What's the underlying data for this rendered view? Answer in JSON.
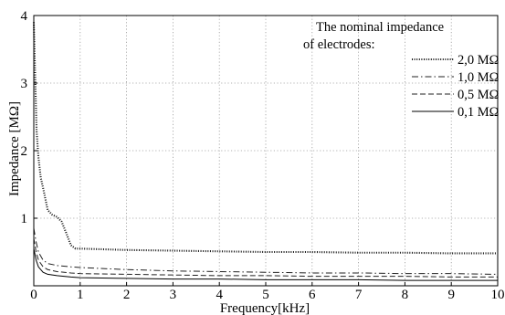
{
  "chart_data": {
    "type": "line",
    "xlabel": "Frequency[kHz]",
    "ylabel": "Impedance [MΩ]",
    "xlim": [
      0,
      10
    ],
    "ylim": [
      0,
      4
    ],
    "x_ticks": [
      "0",
      "1",
      "2",
      "3",
      "4",
      "5",
      "6",
      "7",
      "8",
      "9",
      "10"
    ],
    "y_ticks": [
      "1",
      "2",
      "3",
      "4"
    ],
    "grid": true,
    "legend": {
      "title_lines": [
        "The nominal impedance",
        "of electrodes:"
      ],
      "placement": "top-right"
    },
    "series": [
      {
        "name": "2,0 MΩ",
        "line_style": "dotted",
        "points": [
          [
            0.0,
            3.9
          ],
          [
            0.03,
            3.1
          ],
          [
            0.06,
            2.3
          ],
          [
            0.1,
            1.9
          ],
          [
            0.15,
            1.6
          ],
          [
            0.2,
            1.45
          ],
          [
            0.3,
            1.12
          ],
          [
            0.4,
            1.05
          ],
          [
            0.5,
            1.02
          ],
          [
            0.6,
            0.95
          ],
          [
            0.7,
            0.78
          ],
          [
            0.8,
            0.6
          ],
          [
            0.9,
            0.55
          ],
          [
            1.0,
            0.55
          ],
          [
            2.0,
            0.53
          ],
          [
            3.0,
            0.52
          ],
          [
            4.0,
            0.51
          ],
          [
            5.0,
            0.5
          ],
          [
            6.0,
            0.5
          ],
          [
            7.0,
            0.49
          ],
          [
            8.0,
            0.49
          ],
          [
            9.0,
            0.48
          ],
          [
            10.0,
            0.48
          ]
        ]
      },
      {
        "name": "1,0 MΩ",
        "line_style": "dash-dot",
        "points": [
          [
            0.0,
            0.85
          ],
          [
            0.05,
            0.65
          ],
          [
            0.1,
            0.5
          ],
          [
            0.2,
            0.38
          ],
          [
            0.3,
            0.33
          ],
          [
            0.5,
            0.3
          ],
          [
            0.8,
            0.28
          ],
          [
            1.0,
            0.27
          ],
          [
            2.0,
            0.24
          ],
          [
            3.0,
            0.22
          ],
          [
            4.0,
            0.21
          ],
          [
            5.0,
            0.2
          ],
          [
            6.0,
            0.19
          ],
          [
            7.0,
            0.19
          ],
          [
            8.0,
            0.18
          ],
          [
            9.0,
            0.18
          ],
          [
            10.0,
            0.17
          ]
        ]
      },
      {
        "name": "0,5 MΩ",
        "line_style": "dashed",
        "points": [
          [
            0.0,
            0.7
          ],
          [
            0.05,
            0.5
          ],
          [
            0.1,
            0.38
          ],
          [
            0.2,
            0.28
          ],
          [
            0.3,
            0.24
          ],
          [
            0.5,
            0.21
          ],
          [
            0.8,
            0.19
          ],
          [
            1.0,
            0.18
          ],
          [
            2.0,
            0.17
          ],
          [
            3.0,
            0.16
          ],
          [
            4.0,
            0.15
          ],
          [
            5.0,
            0.15
          ],
          [
            6.0,
            0.14
          ],
          [
            7.0,
            0.14
          ],
          [
            8.0,
            0.14
          ],
          [
            9.0,
            0.13
          ],
          [
            10.0,
            0.13
          ]
        ]
      },
      {
        "name": "0,1 MΩ",
        "line_style": "solid",
        "points": [
          [
            0.0,
            0.55
          ],
          [
            0.05,
            0.38
          ],
          [
            0.1,
            0.28
          ],
          [
            0.2,
            0.2
          ],
          [
            0.3,
            0.17
          ],
          [
            0.5,
            0.15
          ],
          [
            0.8,
            0.13
          ],
          [
            1.0,
            0.12
          ],
          [
            2.0,
            0.11
          ],
          [
            3.0,
            0.1
          ],
          [
            4.0,
            0.1
          ],
          [
            5.0,
            0.09
          ],
          [
            6.0,
            0.09
          ],
          [
            7.0,
            0.09
          ],
          [
            8.0,
            0.08
          ],
          [
            9.0,
            0.08
          ],
          [
            10.0,
            0.08
          ]
        ]
      }
    ]
  }
}
